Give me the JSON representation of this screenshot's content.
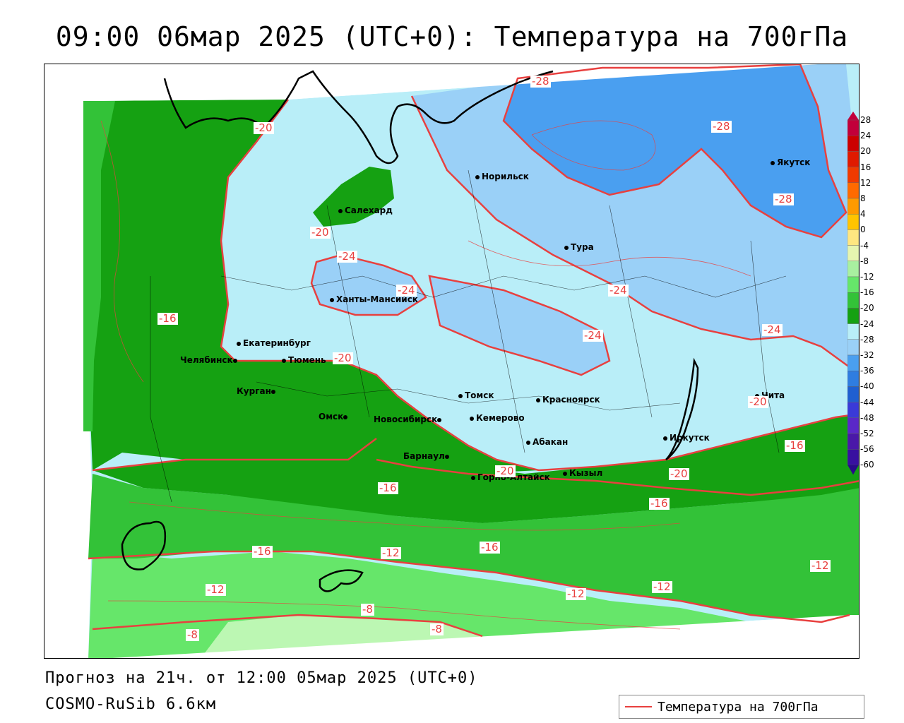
{
  "title": "09:00 06мар 2025 (UTC+0): Температура на 700гПа",
  "footer": {
    "forecast": "Прогноз на 21ч. от 12:00 05мар 2025 (UTC+0)",
    "model": "COSMO-RuSib 6.6км"
  },
  "legend": {
    "label": "Температура на 700гПа",
    "line_color": "#e8403f"
  },
  "colors": {
    "contour": "#e8403f",
    "band_-28": "#4a9ff0",
    "band_-24": "#9ad0f7",
    "band_-20": "#b9eef8",
    "band_-16": "#15a112",
    "band_-12": "#33c238",
    "band_-8": "#66e66a",
    "band_-4": "#bcf7b3"
  },
  "cities": [
    {
      "name": "Норильск"
    },
    {
      "name": "Якутск"
    },
    {
      "name": "Салехард"
    },
    {
      "name": "Тура"
    },
    {
      "name": "Ханты-Мансийск"
    },
    {
      "name": "Екатеринбург"
    },
    {
      "name": "Тюмень"
    },
    {
      "name": "Челябинск"
    },
    {
      "name": "Курган"
    },
    {
      "name": "Омск"
    },
    {
      "name": "Новосибирск"
    },
    {
      "name": "Томск"
    },
    {
      "name": "Кемерово"
    },
    {
      "name": "Красноярск"
    },
    {
      "name": "Барнаул"
    },
    {
      "name": "Абакан"
    },
    {
      "name": "Иркутск"
    },
    {
      "name": "Чита"
    },
    {
      "name": "Горно-Алтайск"
    },
    {
      "name": "Кызыл"
    }
  ],
  "contour_labels": [
    "-28",
    "-28",
    "-28",
    "-20",
    "-20",
    "-24",
    "-24",
    "-24",
    "-24",
    "-24",
    "-16",
    "-20",
    "-20",
    "-20",
    "-20",
    "-16",
    "-16",
    "-16",
    "-16",
    "-16",
    "-12",
    "-12",
    "-12",
    "-12",
    "-12",
    "-8",
    "-8",
    "-8"
  ],
  "scale": {
    "values": [
      "28",
      "24",
      "20",
      "16",
      "12",
      "8",
      "4",
      "0",
      "-4",
      "-8",
      "-12",
      "-16",
      "-20",
      "-24",
      "-28",
      "-32",
      "-36",
      "-40",
      "-44",
      "-48",
      "-52",
      "-56",
      "-60"
    ],
    "colors": [
      "#c2003a",
      "#cc0000",
      "#e01a00",
      "#f03a00",
      "#ff6a00",
      "#ff9a00",
      "#ffc400",
      "#ffe680",
      "#e6f5b0",
      "#a8f0a0",
      "#66e66a",
      "#33c238",
      "#15a112",
      "#b9eef8",
      "#9ad0f7",
      "#4a9ff0",
      "#2f7de0",
      "#1f5fd0",
      "#3a3ad8",
      "#5a28c8",
      "#4a18a8",
      "#3810a0",
      "#280a88"
    ]
  }
}
